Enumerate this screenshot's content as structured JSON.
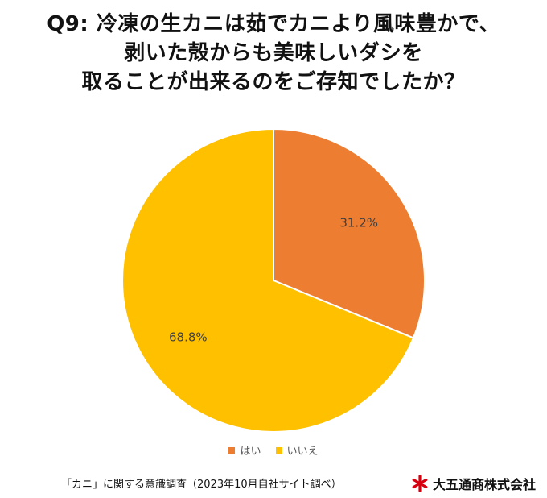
{
  "title": {
    "lines": [
      "Q9: 冷凍の生カニは茹でカニより風味豊かで、",
      "剥いた殻からも美味しいダシを",
      "取ることが出来るのをご存知でしたか？"
    ]
  },
  "chart_data": {
    "type": "pie",
    "slices": [
      {
        "label": "はい",
        "value": 31.2,
        "display": "31.2%",
        "color": "#ED7D31"
      },
      {
        "label": "いいえ",
        "value": 68.8,
        "display": "68.8%",
        "color": "#FFC000"
      }
    ],
    "legend_position": "bottom"
  },
  "footnote": "「カニ」に関する意識調査（2023年10月自社サイト調べ）",
  "brand": {
    "name": "大五通商株式会社",
    "logo_icon": "asterisk-logo-icon",
    "logo_color": "#D7000F"
  }
}
